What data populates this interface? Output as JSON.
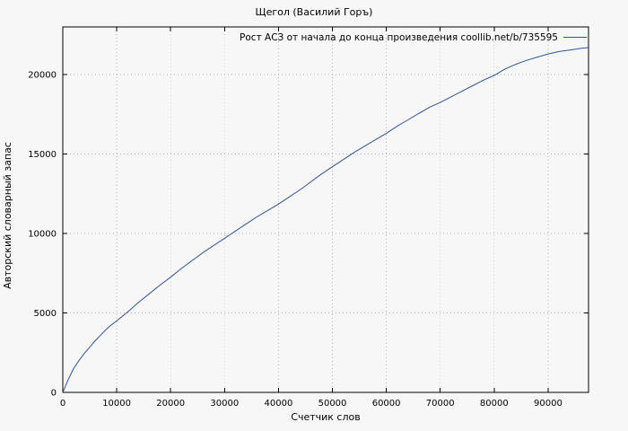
{
  "header": {
    "title": "Щегол (Василий Горъ)"
  },
  "legend": {
    "label": "Рост АСЗ от начала до конца произведения coollib.net/b/735595"
  },
  "chart_data": {
    "type": "line",
    "title": "Щегол (Василий Горъ)",
    "xlabel": "Счетчик слов",
    "ylabel": "Авторский словарный запас",
    "xlim": [
      0,
      97500
    ],
    "ylim": [
      0,
      23000
    ],
    "xticks": [
      0,
      10000,
      20000,
      30000,
      40000,
      50000,
      60000,
      70000,
      80000,
      90000
    ],
    "yticks": [
      0,
      5000,
      10000,
      15000,
      20000
    ],
    "grid": true,
    "grid_style": "dotted",
    "legend_position": "top-inside",
    "border_color": "#000000",
    "grid_color": "#b0b0b0",
    "series": [
      {
        "name": "Рост АСЗ от начала до конца произведения coollib.net/b/735595",
        "color": "#2f5597",
        "points": [
          [
            0,
            0
          ],
          [
            500,
            400
          ],
          [
            1000,
            800
          ],
          [
            1500,
            1150
          ],
          [
            2000,
            1500
          ],
          [
            3000,
            2000
          ],
          [
            4000,
            2450
          ],
          [
            5000,
            2850
          ],
          [
            6000,
            3250
          ],
          [
            7000,
            3600
          ],
          [
            8000,
            3950
          ],
          [
            9000,
            4250
          ],
          [
            10000,
            4500
          ],
          [
            12000,
            5050
          ],
          [
            14000,
            5650
          ],
          [
            16000,
            6200
          ],
          [
            18000,
            6750
          ],
          [
            20000,
            7250
          ],
          [
            22000,
            7800
          ],
          [
            24000,
            8300
          ],
          [
            26000,
            8800
          ],
          [
            28000,
            9250
          ],
          [
            30000,
            9700
          ],
          [
            32000,
            10150
          ],
          [
            34000,
            10600
          ],
          [
            36000,
            11050
          ],
          [
            38000,
            11450
          ],
          [
            40000,
            11850
          ],
          [
            42000,
            12300
          ],
          [
            44000,
            12750
          ],
          [
            46000,
            13250
          ],
          [
            48000,
            13750
          ],
          [
            50000,
            14200
          ],
          [
            52000,
            14650
          ],
          [
            54000,
            15100
          ],
          [
            56000,
            15500
          ],
          [
            58000,
            15900
          ],
          [
            60000,
            16300
          ],
          [
            62000,
            16750
          ],
          [
            64000,
            17150
          ],
          [
            66000,
            17550
          ],
          [
            68000,
            17950
          ],
          [
            70000,
            18250
          ],
          [
            72000,
            18600
          ],
          [
            74000,
            18950
          ],
          [
            76000,
            19300
          ],
          [
            78000,
            19650
          ],
          [
            80000,
            19950
          ],
          [
            82000,
            20350
          ],
          [
            84000,
            20650
          ],
          [
            86000,
            20900
          ],
          [
            88000,
            21100
          ],
          [
            90000,
            21300
          ],
          [
            92000,
            21450
          ],
          [
            94000,
            21550
          ],
          [
            96000,
            21650
          ],
          [
            97500,
            21700
          ]
        ]
      }
    ]
  }
}
